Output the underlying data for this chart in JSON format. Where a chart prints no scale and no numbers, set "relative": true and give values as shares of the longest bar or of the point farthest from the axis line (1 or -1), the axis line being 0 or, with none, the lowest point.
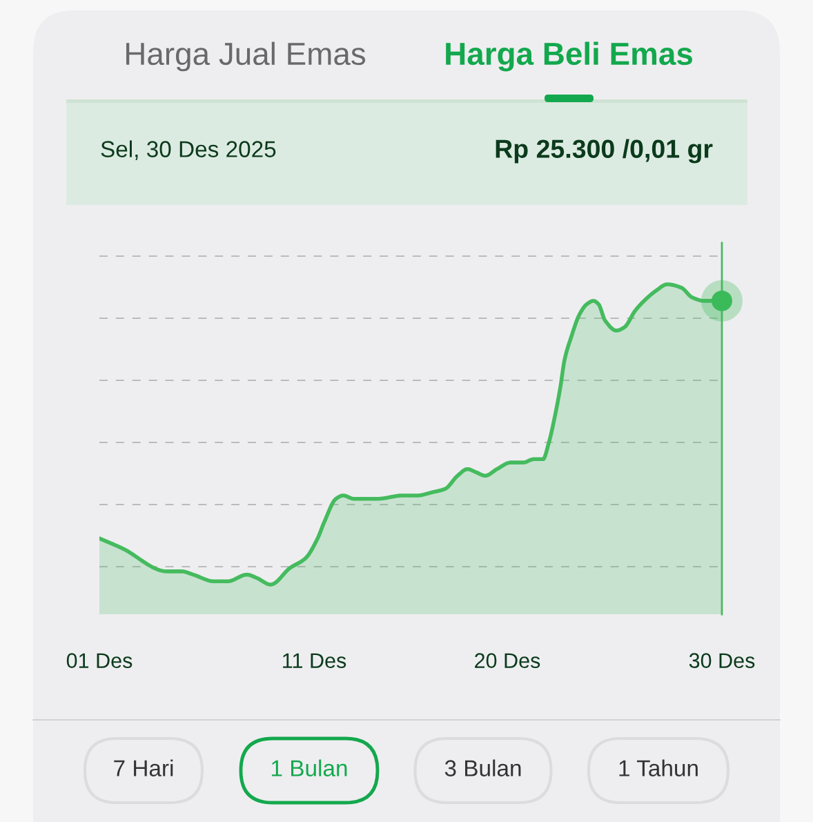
{
  "chart_data": {
    "type": "area",
    "title": "Harga Beli Emas",
    "annotations": [
      "Harga Jual Emas",
      "Sel, 30 Des 2025",
      "Rp 25.300 /0,01 gr",
      "7 Hari",
      "1 Bulan",
      "3 Bulan",
      "1 Tahun"
    ],
    "relative": true,
    "series": [
      {
        "color": "#45bb5e",
        "x": [
          "2025-12-01T00:00",
          "2025-12-02T01:30",
          "2025-12-04T03:30",
          "2025-12-04T20:00",
          "2025-12-05T09:00",
          "2025-12-06T08:00",
          "2025-12-06T23:30",
          "2025-12-07T21:00",
          "2025-12-08T08:00",
          "2025-12-08T23:30",
          "2025-12-09T21:00",
          "2025-12-10T14:30",
          "2025-12-11T04:00",
          "2025-12-11T11:30",
          "2025-12-12T00:30",
          "2025-12-12T08:30",
          "2025-12-12T20:30",
          "2025-12-13T23:00",
          "2025-12-15T03:00",
          "2025-12-15T19:30",
          "2025-12-16T12:30",
          "2025-12-17T02:30",
          "2025-12-17T16:30",
          "2025-12-18T03:30",
          "2025-12-18T13:30",
          "2025-12-18T23:30",
          "2025-12-19T12:30",
          "2025-12-20T04:00",
          "2025-12-20T18:00",
          "2025-12-21T05:30",
          "2025-12-21T16:00",
          "2025-12-21T22:30",
          "2025-12-22T04:30",
          "2025-12-22T11:30",
          "2025-12-22T16:00",
          "2025-12-22T23:30",
          "2025-12-23T09:00",
          "2025-12-23T17:00",
          "2025-12-24T00:30",
          "2025-12-24T06:00",
          "2025-12-24T13:30",
          "2025-12-25T02:00",
          "2025-12-25T11:00",
          "2025-12-25T23:00",
          "2025-12-26T09:00",
          "2025-12-26T22:00",
          "2025-12-27T11:00",
          "2025-12-28T02:30",
          "2025-12-28T15:00",
          "2025-12-29T04:00",
          "2025-12-30T00:00"
        ],
        "values": [
          0.23,
          0.2,
          0.13,
          0.13,
          0.12,
          0.1,
          0.1,
          0.12,
          0.11,
          0.09,
          0.14,
          0.17,
          0.23,
          0.28,
          0.35,
          0.36,
          0.35,
          0.35,
          0.36,
          0.36,
          0.37,
          0.38,
          0.42,
          0.44,
          0.43,
          0.42,
          0.44,
          0.46,
          0.46,
          0.47,
          0.47,
          0.52,
          0.59,
          0.69,
          0.77,
          0.84,
          0.91,
          0.94,
          0.95,
          0.94,
          0.89,
          0.86,
          0.87,
          0.92,
          0.95,
          0.98,
          1,
          0.99,
          0.96,
          0.95,
          0.95
        ]
      },
      {
        "type": "line",
        "color": "#3cba5a",
        "marker": "circle",
        "x": [
          "2025-12-30T00:00"
        ],
        "values": [
          0.95
        ]
      }
    ],
    "ref_lines": [
      {
        "axis": "x",
        "value": "2025-12-30T00:00",
        "color": "#4cb85f",
        "line_style": "solid"
      }
    ],
    "xlim": [
      "2025-12-01",
      "2025-12-30"
    ],
    "xticks": [
      {
        "value": "2025-12-01",
        "label": "01 Des"
      },
      {
        "value": "2025-12-11",
        "label": "11 Des"
      },
      {
        "value": "2025-12-20",
        "label": "20 Des"
      },
      {
        "value": "2025-12-30",
        "label": "30 Des"
      }
    ],
    "grid": "y",
    "tick_labels": "x"
  }
}
